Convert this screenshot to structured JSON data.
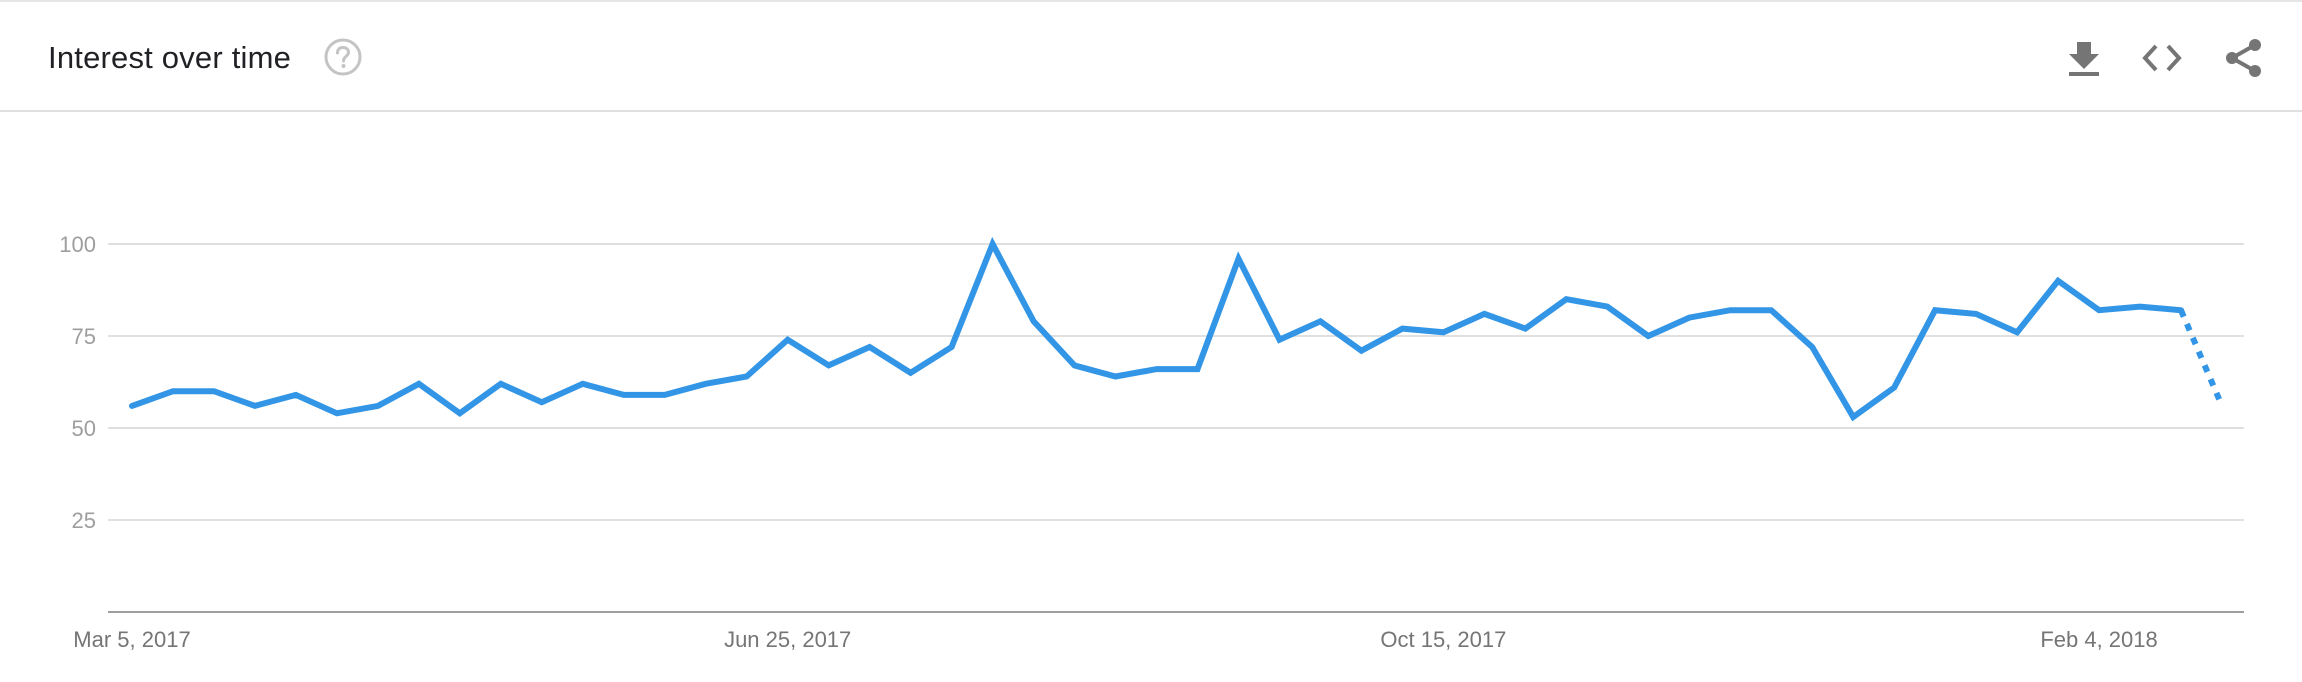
{
  "header": {
    "title": "Interest over time",
    "help_icon": "help-circle-icon",
    "actions": [
      {
        "name": "download",
        "icon": "download-icon"
      },
      {
        "name": "embed",
        "icon": "code-icon"
      },
      {
        "name": "share",
        "icon": "share-icon"
      }
    ]
  },
  "chart_data": {
    "type": "line",
    "title": "",
    "xlabel": "",
    "ylabel": "",
    "ylim": [
      0,
      100
    ],
    "yticks": [
      25,
      50,
      75,
      100
    ],
    "grid": true,
    "color": "#3295e6",
    "xtick_labels": [
      "Mar 5, 2017",
      "Jun 25, 2017",
      "Oct 15, 2017",
      "Feb 4, 2018"
    ],
    "x": [
      "2017-03-05",
      "2017-03-12",
      "2017-03-19",
      "2017-03-26",
      "2017-04-02",
      "2017-04-09",
      "2017-04-16",
      "2017-04-23",
      "2017-04-30",
      "2017-05-07",
      "2017-05-14",
      "2017-05-21",
      "2017-05-28",
      "2017-06-04",
      "2017-06-11",
      "2017-06-18",
      "2017-06-25",
      "2017-07-02",
      "2017-07-09",
      "2017-07-16",
      "2017-07-23",
      "2017-07-30",
      "2017-08-06",
      "2017-08-13",
      "2017-08-20",
      "2017-08-27",
      "2017-09-03",
      "2017-09-10",
      "2017-09-17",
      "2017-09-24",
      "2017-10-01",
      "2017-10-08",
      "2017-10-15",
      "2017-10-22",
      "2017-10-29",
      "2017-11-05",
      "2017-11-12",
      "2017-11-19",
      "2017-11-26",
      "2017-12-03",
      "2017-12-10",
      "2017-12-17",
      "2017-12-24",
      "2017-12-31",
      "2018-01-07",
      "2018-01-14",
      "2018-01-21",
      "2018-01-28",
      "2018-02-04",
      "2018-02-11",
      "2018-02-18",
      "2018-02-25"
    ],
    "series": [
      {
        "values": [
          56,
          60,
          60,
          56,
          59,
          54,
          56,
          62,
          54,
          62,
          57,
          62,
          59,
          59,
          62,
          64,
          74,
          67,
          72,
          65,
          72,
          100,
          79,
          67,
          64,
          66,
          66,
          96,
          74,
          79,
          71,
          77,
          76,
          81,
          77,
          85,
          83,
          75,
          80,
          82,
          82,
          72,
          53,
          61,
          82,
          81,
          76,
          90,
          82,
          83,
          82,
          56
        ],
        "partial_from_index": 50
      }
    ]
  }
}
